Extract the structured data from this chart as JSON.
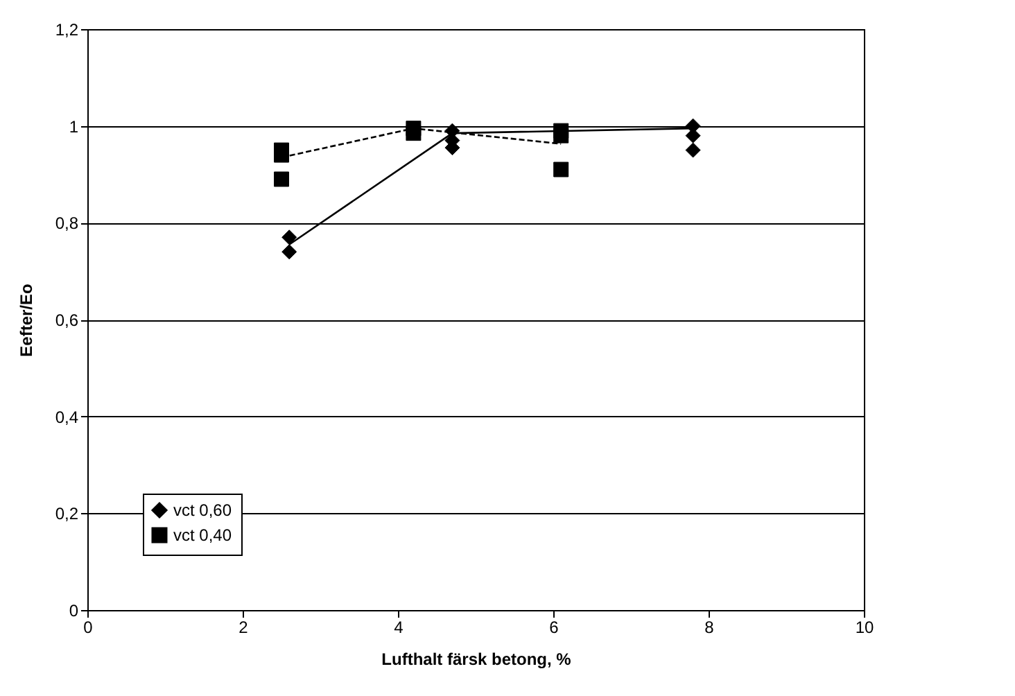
{
  "chart_data": {
    "type": "scatter",
    "xlabel": "Lufthalt färsk betong, %",
    "ylabel": "Eefter/Eo",
    "xlim": [
      0,
      10
    ],
    "xticks": [
      0,
      2,
      4,
      6,
      8,
      10
    ],
    "ylim": [
      0,
      1.2
    ],
    "yticks": [
      {
        "value": 0,
        "label": "0"
      },
      {
        "value": 0.2,
        "label": "0,2"
      },
      {
        "value": 0.4,
        "label": "0,4"
      },
      {
        "value": 0.6,
        "label": "0,6"
      },
      {
        "value": 0.8,
        "label": "0,8"
      },
      {
        "value": 1,
        "label": "1"
      },
      {
        "value": 1.2,
        "label": "1,2"
      }
    ],
    "grid": "y",
    "legend": "bottom left",
    "series": [
      {
        "name": "vct 0,60",
        "marker": "diamond",
        "color": "#000000",
        "x": [
          2.6,
          2.6,
          4.7,
          4.7,
          4.7,
          7.8,
          7.8,
          7.8
        ],
        "values": [
          0.77,
          0.74,
          0.99,
          0.97,
          0.955,
          1.0,
          0.98,
          0.95
        ]
      },
      {
        "name": "vct 0,40",
        "marker": "square",
        "color": "#000000",
        "x": [
          2.5,
          2.5,
          2.5,
          4.2,
          4.2,
          6.1,
          6.1,
          6.1
        ],
        "values": [
          0.95,
          0.94,
          0.89,
          0.995,
          0.985,
          0.99,
          0.98,
          0.91
        ]
      },
      {
        "type": "line",
        "line_style": "solid",
        "marker": "none",
        "color": "#000000",
        "x": [
          2.6,
          4.7,
          7.8
        ],
        "values": [
          0.755,
          0.985,
          0.995
        ]
      },
      {
        "type": "line",
        "line_style": "dashed",
        "marker": "none",
        "color": "#000000",
        "x": [
          2.5,
          4.2,
          6.1
        ],
        "values": [
          0.935,
          0.995,
          0.963
        ]
      }
    ]
  }
}
